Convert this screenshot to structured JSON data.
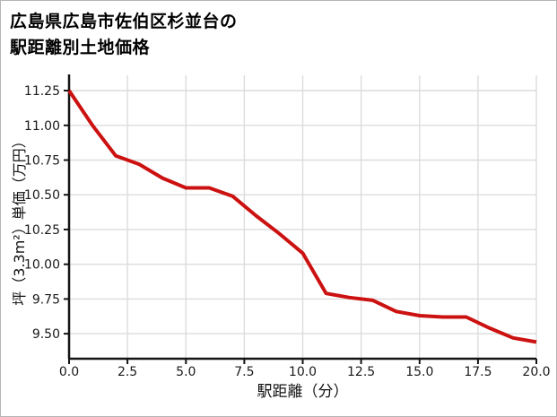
{
  "title": {
    "line1": "広島県広島市佐伯区杉並台の",
    "line2": "駅距離別土地価格"
  },
  "colors": {
    "line": "#cc1111",
    "grid": "#dcdcdc",
    "axis": "#141414",
    "tick_text": "#1a1a1a",
    "border": "#b5b5b5",
    "background": "#ffffff"
  },
  "chart_data": {
    "type": "line",
    "title": "広島県広島市佐伯区杉並台の駅距離別土地価格",
    "xlabel": "駅距離（分）",
    "ylabel": "坪（3.3m²）単価（万円）",
    "x": [
      0,
      1,
      2,
      3,
      4,
      5,
      6,
      7,
      8,
      9,
      10,
      11,
      12,
      13,
      14,
      15,
      16,
      17,
      18,
      19,
      20
    ],
    "values": [
      11.25,
      11.0,
      10.78,
      10.72,
      10.62,
      10.55,
      10.55,
      10.49,
      10.35,
      10.22,
      10.08,
      9.79,
      9.76,
      9.74,
      9.66,
      9.63,
      9.62,
      9.62,
      9.54,
      9.47,
      9.44
    ],
    "xlim": [
      0,
      20
    ],
    "ylim": [
      9.32,
      11.36
    ],
    "xticks": [
      0,
      2.5,
      5,
      7.5,
      10,
      12.5,
      15,
      17.5,
      20
    ],
    "xtick_labels": [
      "0.0",
      "2.5",
      "5.0",
      "7.5",
      "10.0",
      "12.5",
      "15.0",
      "17.5",
      "20.0"
    ],
    "yticks": [
      9.5,
      9.75,
      10,
      10.25,
      10.5,
      10.75,
      11,
      11.25
    ],
    "ytick_labels": [
      "9.50",
      "9.75",
      "10.00",
      "10.25",
      "10.50",
      "10.75",
      "11.00",
      "11.25"
    ],
    "grid": true,
    "legend": "none"
  }
}
